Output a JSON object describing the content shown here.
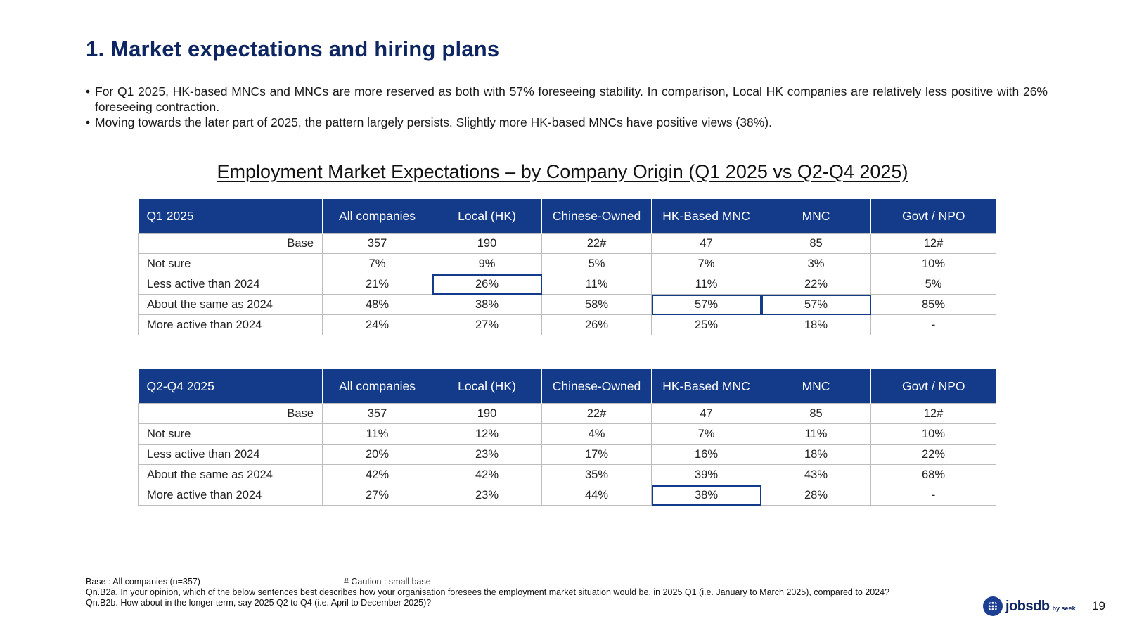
{
  "title": "1. Market expectations and hiring plans",
  "bullets": [
    "For Q1 2025, HK-based MNCs and MNCs are more reserved as both with 57% foreseeing stability. In comparison, Local HK companies are relatively less positive with 26% foreseeing contraction.",
    "Moving towards the later part of 2025, the pattern largely persists.  Slightly more HK-based MNCs have positive views (38%)."
  ],
  "subtitle": "Employment Market Expectations – by Company Origin (Q1 2025 vs Q2-Q4 2025)",
  "columns": [
    "All companies",
    "Local (HK)",
    "Chinese-Owned",
    "HK-Based MNC",
    "MNC",
    "Govt / NPO"
  ],
  "tables": [
    {
      "period": "Q1 2025",
      "rows": [
        {
          "label": "Base",
          "values": [
            "357",
            "190",
            "22#",
            "47",
            "85",
            "12#"
          ]
        },
        {
          "label": "Not sure",
          "values": [
            "7%",
            "9%",
            "5%",
            "7%",
            "3%",
            "10%"
          ]
        },
        {
          "label": "Less active than 2024",
          "values": [
            "21%",
            "26%",
            "11%",
            "11%",
            "22%",
            "5%"
          ]
        },
        {
          "label": "About the same as 2024",
          "values": [
            "48%",
            "38%",
            "58%",
            "57%",
            "57%",
            "85%"
          ]
        },
        {
          "label": "More active than 2024",
          "values": [
            "24%",
            "27%",
            "26%",
            "25%",
            "18%",
            "-"
          ]
        }
      ]
    },
    {
      "period": "Q2-Q4 2025",
      "rows": [
        {
          "label": "Base",
          "values": [
            "357",
            "190",
            "22#",
            "47",
            "85",
            "12#"
          ]
        },
        {
          "label": "Not sure",
          "values": [
            "11%",
            "12%",
            "4%",
            "7%",
            "11%",
            "10%"
          ]
        },
        {
          "label": "Less active than 2024",
          "values": [
            "20%",
            "23%",
            "17%",
            "16%",
            "18%",
            "22%"
          ]
        },
        {
          "label": "About the same as 2024",
          "values": [
            "42%",
            "42%",
            "35%",
            "39%",
            "43%",
            "68%"
          ]
        },
        {
          "label": "More active than 2024",
          "values": [
            "27%",
            "23%",
            "44%",
            "38%",
            "28%",
            "-"
          ]
        }
      ]
    }
  ],
  "highlight_color": "#133b8a",
  "header_color": "#133b8a",
  "footnotes": {
    "base": "Base : All companies  (n=357)",
    "caution": "# Caution : small base",
    "q1": "Qn.B2a. In your opinion, which of the below sentences best describes how your organisation foresees the employment market situation would be, in 2025 Q1 (i.e. January to March 2025), compared to 2024?",
    "q2": "Qn.B2b. How about in the longer term, say 2025 Q2 to Q4 (i.e. April to December 2025)?"
  },
  "logo": {
    "name": "jobsdb",
    "sub": "by seek",
    "icon": "jobsdb-logo-icon"
  },
  "page_number": "19"
}
